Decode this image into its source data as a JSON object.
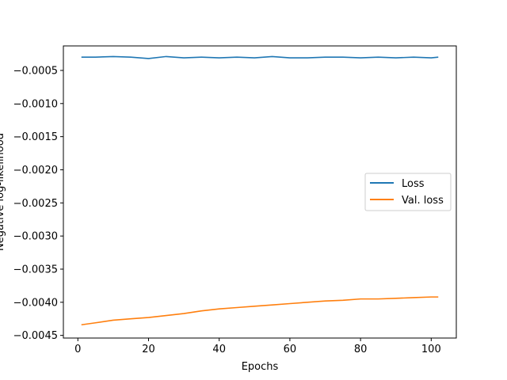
{
  "chart_data": {
    "type": "line",
    "title": "",
    "xlabel": "Epochs",
    "ylabel": "Negative log-likelihood",
    "xlim": [
      -4.1,
      107.1
    ],
    "ylim": [
      -0.00454,
      -0.00013
    ],
    "x_ticks": [
      0,
      20,
      40,
      60,
      80,
      100
    ],
    "x_tick_labels": [
      "0",
      "20",
      "40",
      "60",
      "80",
      "100"
    ],
    "y_ticks": [
      -0.0045,
      -0.004,
      -0.0035,
      -0.003,
      -0.0025,
      -0.002,
      -0.0015,
      -0.001,
      -0.0005
    ],
    "y_tick_labels": [
      "−0.0045",
      "−0.0040",
      "−0.0035",
      "−0.0030",
      "−0.0025",
      "−0.0020",
      "−0.0015",
      "−0.0010",
      "−0.0005"
    ],
    "grid": false,
    "legend_position": "center-right",
    "colors": {
      "loss": "#1f77b4",
      "val_loss": "#ff7f0e"
    },
    "x": [
      1,
      5,
      10,
      15,
      20,
      25,
      30,
      35,
      40,
      45,
      50,
      55,
      60,
      65,
      70,
      75,
      80,
      85,
      90,
      95,
      100,
      102
    ],
    "series": [
      {
        "name": "Loss",
        "values": [
          -0.0003,
          -0.0003,
          -0.00029,
          -0.0003,
          -0.00032,
          -0.00029,
          -0.00031,
          -0.0003,
          -0.00031,
          -0.0003,
          -0.00031,
          -0.00029,
          -0.00031,
          -0.00031,
          -0.0003,
          -0.0003,
          -0.00031,
          -0.0003,
          -0.00031,
          -0.0003,
          -0.00031,
          -0.0003
        ]
      },
      {
        "name": "Val. loss",
        "values": [
          -0.00434,
          -0.00431,
          -0.00427,
          -0.00425,
          -0.00423,
          -0.0042,
          -0.00417,
          -0.00413,
          -0.0041,
          -0.00408,
          -0.00406,
          -0.00404,
          -0.00402,
          -0.004,
          -0.00398,
          -0.00397,
          -0.00395,
          -0.00395,
          -0.00394,
          -0.00393,
          -0.00392,
          -0.00392
        ]
      }
    ]
  }
}
